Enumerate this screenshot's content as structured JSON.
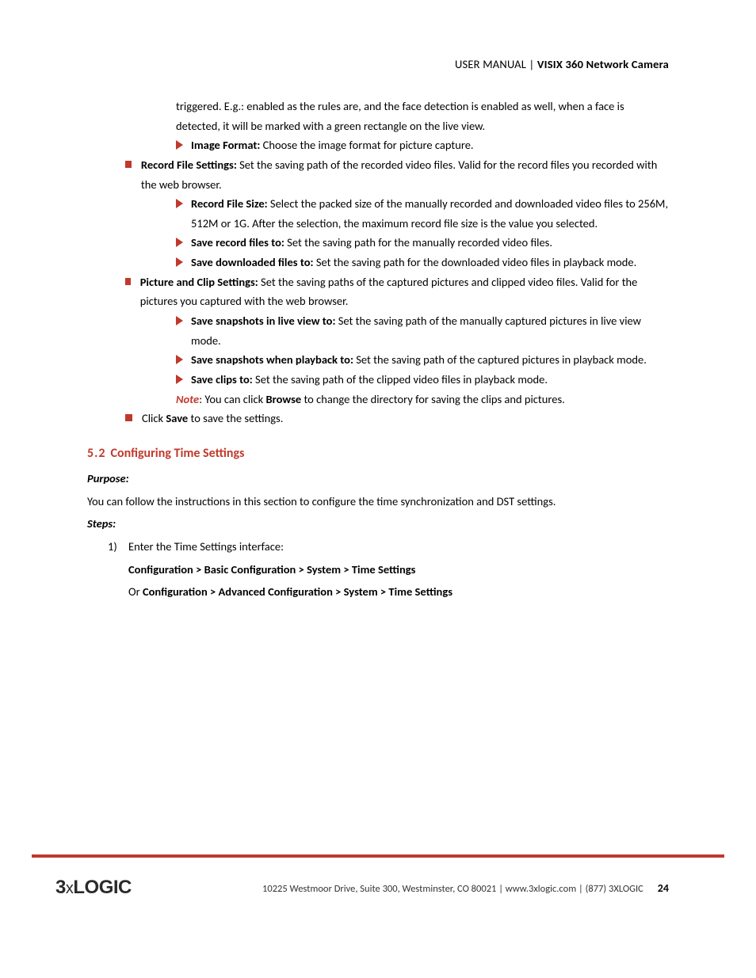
{
  "header": {
    "left": "USER MANUAL",
    "sep": " | ",
    "right": "VISIX 360 Network Camera"
  },
  "body": {
    "p1_cont": "triggered. E.g.: enabled as the rules are, and the face detection is enabled as well, when a face is detected, it will be marked with a green rectangle on the live view.",
    "image_format_label": "Image Format:",
    "image_format_text": " Choose the image format for picture capture.",
    "record_file_settings_label": "Record File Settings:",
    "record_file_settings_text": " Set the saving path of the recorded video files. Valid for the record files you recorded with the web browser.",
    "record_file_size_label": "Record File Size:",
    "record_file_size_text": " Select the packed size of the manually recorded and downloaded video files to 256M, 512M or 1G. After the selection, the maximum record file size is the value you selected.",
    "save_record_files_label": "Save record files to:",
    "save_record_files_text": " Set the saving path for the manually recorded video files.",
    "save_downloaded_files_label": "Save downloaded files to:",
    "save_downloaded_files_text": " Set the saving path for the downloaded video files in playback mode.",
    "picture_clip_label": "Picture and Clip Settings:",
    "picture_clip_text": " Set the saving paths of the captured pictures and clipped video files. Valid for the pictures you captured with the web browser.",
    "save_snapshots_live_label": "Save snapshots in live view to:",
    "save_snapshots_live_text": " Set the saving path of the manually captured pictures in live view mode.",
    "save_snapshots_playback_label": "Save snapshots when playback to:",
    "save_snapshots_playback_text": " Set the saving path of the captured pictures in playback mode.",
    "save_clips_label": "Save clips to:",
    "save_clips_text": " Set the saving path of the clipped video files in playback mode.",
    "note_label": "Note",
    "note_text1": ": You can click ",
    "note_browse": "Browse",
    "note_text2": " to change the directory for saving the clips and pictures.",
    "click_save_pre": "Click ",
    "click_save_b": "Save",
    "click_save_post": " to save the settings."
  },
  "section": {
    "num": "5.2",
    "title": "Configuring Time Settings",
    "purpose_label": "Purpose:",
    "purpose_text": "You can follow the instructions in this section to configure the time synchronization and DST settings.",
    "steps_label": "Steps:",
    "step1_num": "1)",
    "step1_text": "Enter the Time Settings interface:",
    "path1": "Configuration > Basic Configuration > System > Time Settings",
    "path2_pre": "Or ",
    "path2": "Configuration > Advanced Configuration > System > Time Settings"
  },
  "footer": {
    "logo_a": "3",
    "logo_x": "x",
    "logo_b": "LOGIC",
    "address": "10225 Westmoor Drive, Suite 300, Westminster, CO 80021 | www.3xlogic.com | (877) 3XLOGIC",
    "page": "24"
  },
  "colors": {
    "accent": "#c0392b",
    "text": "#000000"
  }
}
